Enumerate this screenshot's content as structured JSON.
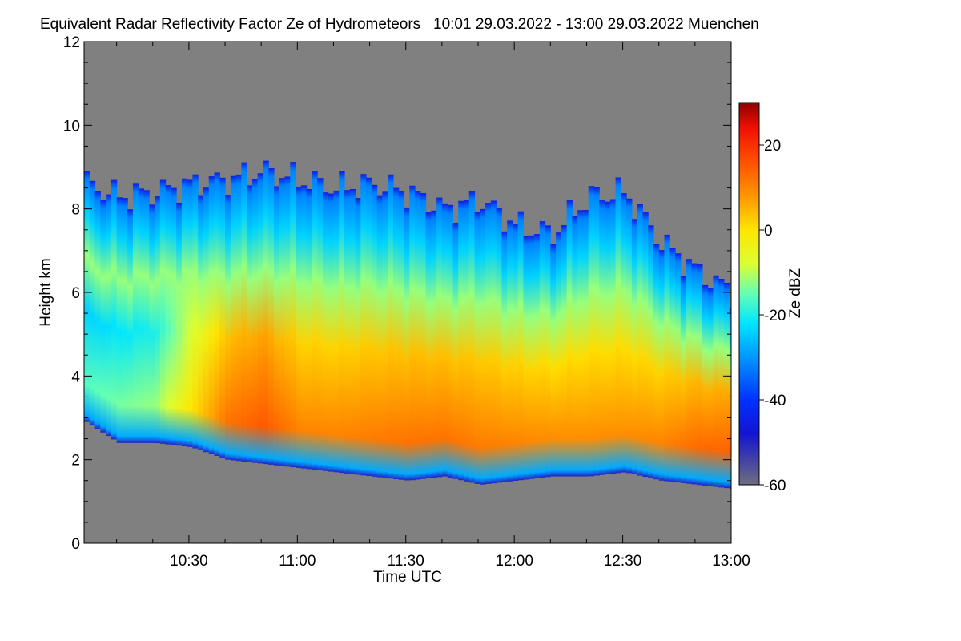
{
  "page": {
    "title": "Equivalent Radar Reflectivity Factor Ze of Hydrometeors   10:01 29.03.2022 - 13:00 29.03.2022 Muenchen"
  },
  "chart_data": {
    "type": "heatmap",
    "title": "Equivalent Radar Reflectivity Factor Ze of Hydrometeors",
    "time_range_text": "10:01 29.03.2022 - 13:00 29.03.2022",
    "location": "Muenchen",
    "xlabel": "Time UTC",
    "ylabel": "Height km",
    "x_unit": "minutes after 10:00 UTC",
    "xlim": [
      1,
      180
    ],
    "x_ticks": [
      {
        "value": 30,
        "label": "10:30"
      },
      {
        "value": 60,
        "label": "11:00"
      },
      {
        "value": 90,
        "label": "11:30"
      },
      {
        "value": 120,
        "label": "12:00"
      },
      {
        "value": 150,
        "label": "12:30"
      },
      {
        "value": 180,
        "label": "13:00"
      }
    ],
    "ylim": [
      0,
      12
    ],
    "y_ticks": [
      0,
      2,
      4,
      6,
      8,
      10,
      12
    ],
    "colorbar": {
      "label": "Ze dBZ",
      "range": [
        -60,
        30
      ],
      "ticks": [
        -60,
        -40,
        -20,
        0,
        20
      ],
      "no_signal_color": "#808080",
      "stops": [
        {
          "value": -60,
          "color": "#6e6e7e"
        },
        {
          "value": -48,
          "color": "#1414d2"
        },
        {
          "value": -40,
          "color": "#0032ff"
        },
        {
          "value": -30,
          "color": "#0096ff"
        },
        {
          "value": -22,
          "color": "#00e6ff"
        },
        {
          "value": -15,
          "color": "#64ffb4"
        },
        {
          "value": -8,
          "color": "#dcff32"
        },
        {
          "value": 0,
          "color": "#ffe600"
        },
        {
          "value": 8,
          "color": "#ff9600"
        },
        {
          "value": 16,
          "color": "#ff5000"
        },
        {
          "value": 24,
          "color": "#f01000"
        },
        {
          "value": 30,
          "color": "#8c0000"
        }
      ]
    },
    "cloud_profile": [
      {
        "time": 1,
        "base_km": 2.9,
        "top_km": 8.6,
        "peak_dbz": -16
      },
      {
        "time": 10,
        "base_km": 2.4,
        "top_km": 8.3,
        "peak_dbz": -14
      },
      {
        "time": 20,
        "base_km": 2.4,
        "top_km": 8.4,
        "peak_dbz": -12
      },
      {
        "time": 30,
        "base_km": 2.3,
        "top_km": 8.6,
        "peak_dbz": 0
      },
      {
        "time": 40,
        "base_km": 2.0,
        "top_km": 8.7,
        "peak_dbz": 12
      },
      {
        "time": 50,
        "base_km": 1.9,
        "top_km": 8.9,
        "peak_dbz": 15
      },
      {
        "time": 60,
        "base_km": 1.8,
        "top_km": 8.7,
        "peak_dbz": 10
      },
      {
        "time": 70,
        "base_km": 1.7,
        "top_km": 8.5,
        "peak_dbz": 10
      },
      {
        "time": 80,
        "base_km": 1.6,
        "top_km": 8.6,
        "peak_dbz": 11
      },
      {
        "time": 90,
        "base_km": 1.5,
        "top_km": 8.4,
        "peak_dbz": 12
      },
      {
        "time": 100,
        "base_km": 1.6,
        "top_km": 8.0,
        "peak_dbz": 12
      },
      {
        "time": 110,
        "base_km": 1.4,
        "top_km": 8.2,
        "peak_dbz": 11
      },
      {
        "time": 120,
        "base_km": 1.5,
        "top_km": 7.6,
        "peak_dbz": 10
      },
      {
        "time": 130,
        "base_km": 1.6,
        "top_km": 7.4,
        "peak_dbz": 9
      },
      {
        "time": 140,
        "base_km": 1.6,
        "top_km": 8.3,
        "peak_dbz": 9
      },
      {
        "time": 150,
        "base_km": 1.7,
        "top_km": 8.4,
        "peak_dbz": 9
      },
      {
        "time": 160,
        "base_km": 1.5,
        "top_km": 7.2,
        "peak_dbz": 10
      },
      {
        "time": 170,
        "base_km": 1.4,
        "top_km": 6.5,
        "peak_dbz": 13
      },
      {
        "time": 180,
        "base_km": 1.3,
        "top_km": 6.0,
        "peak_dbz": 14
      }
    ]
  }
}
